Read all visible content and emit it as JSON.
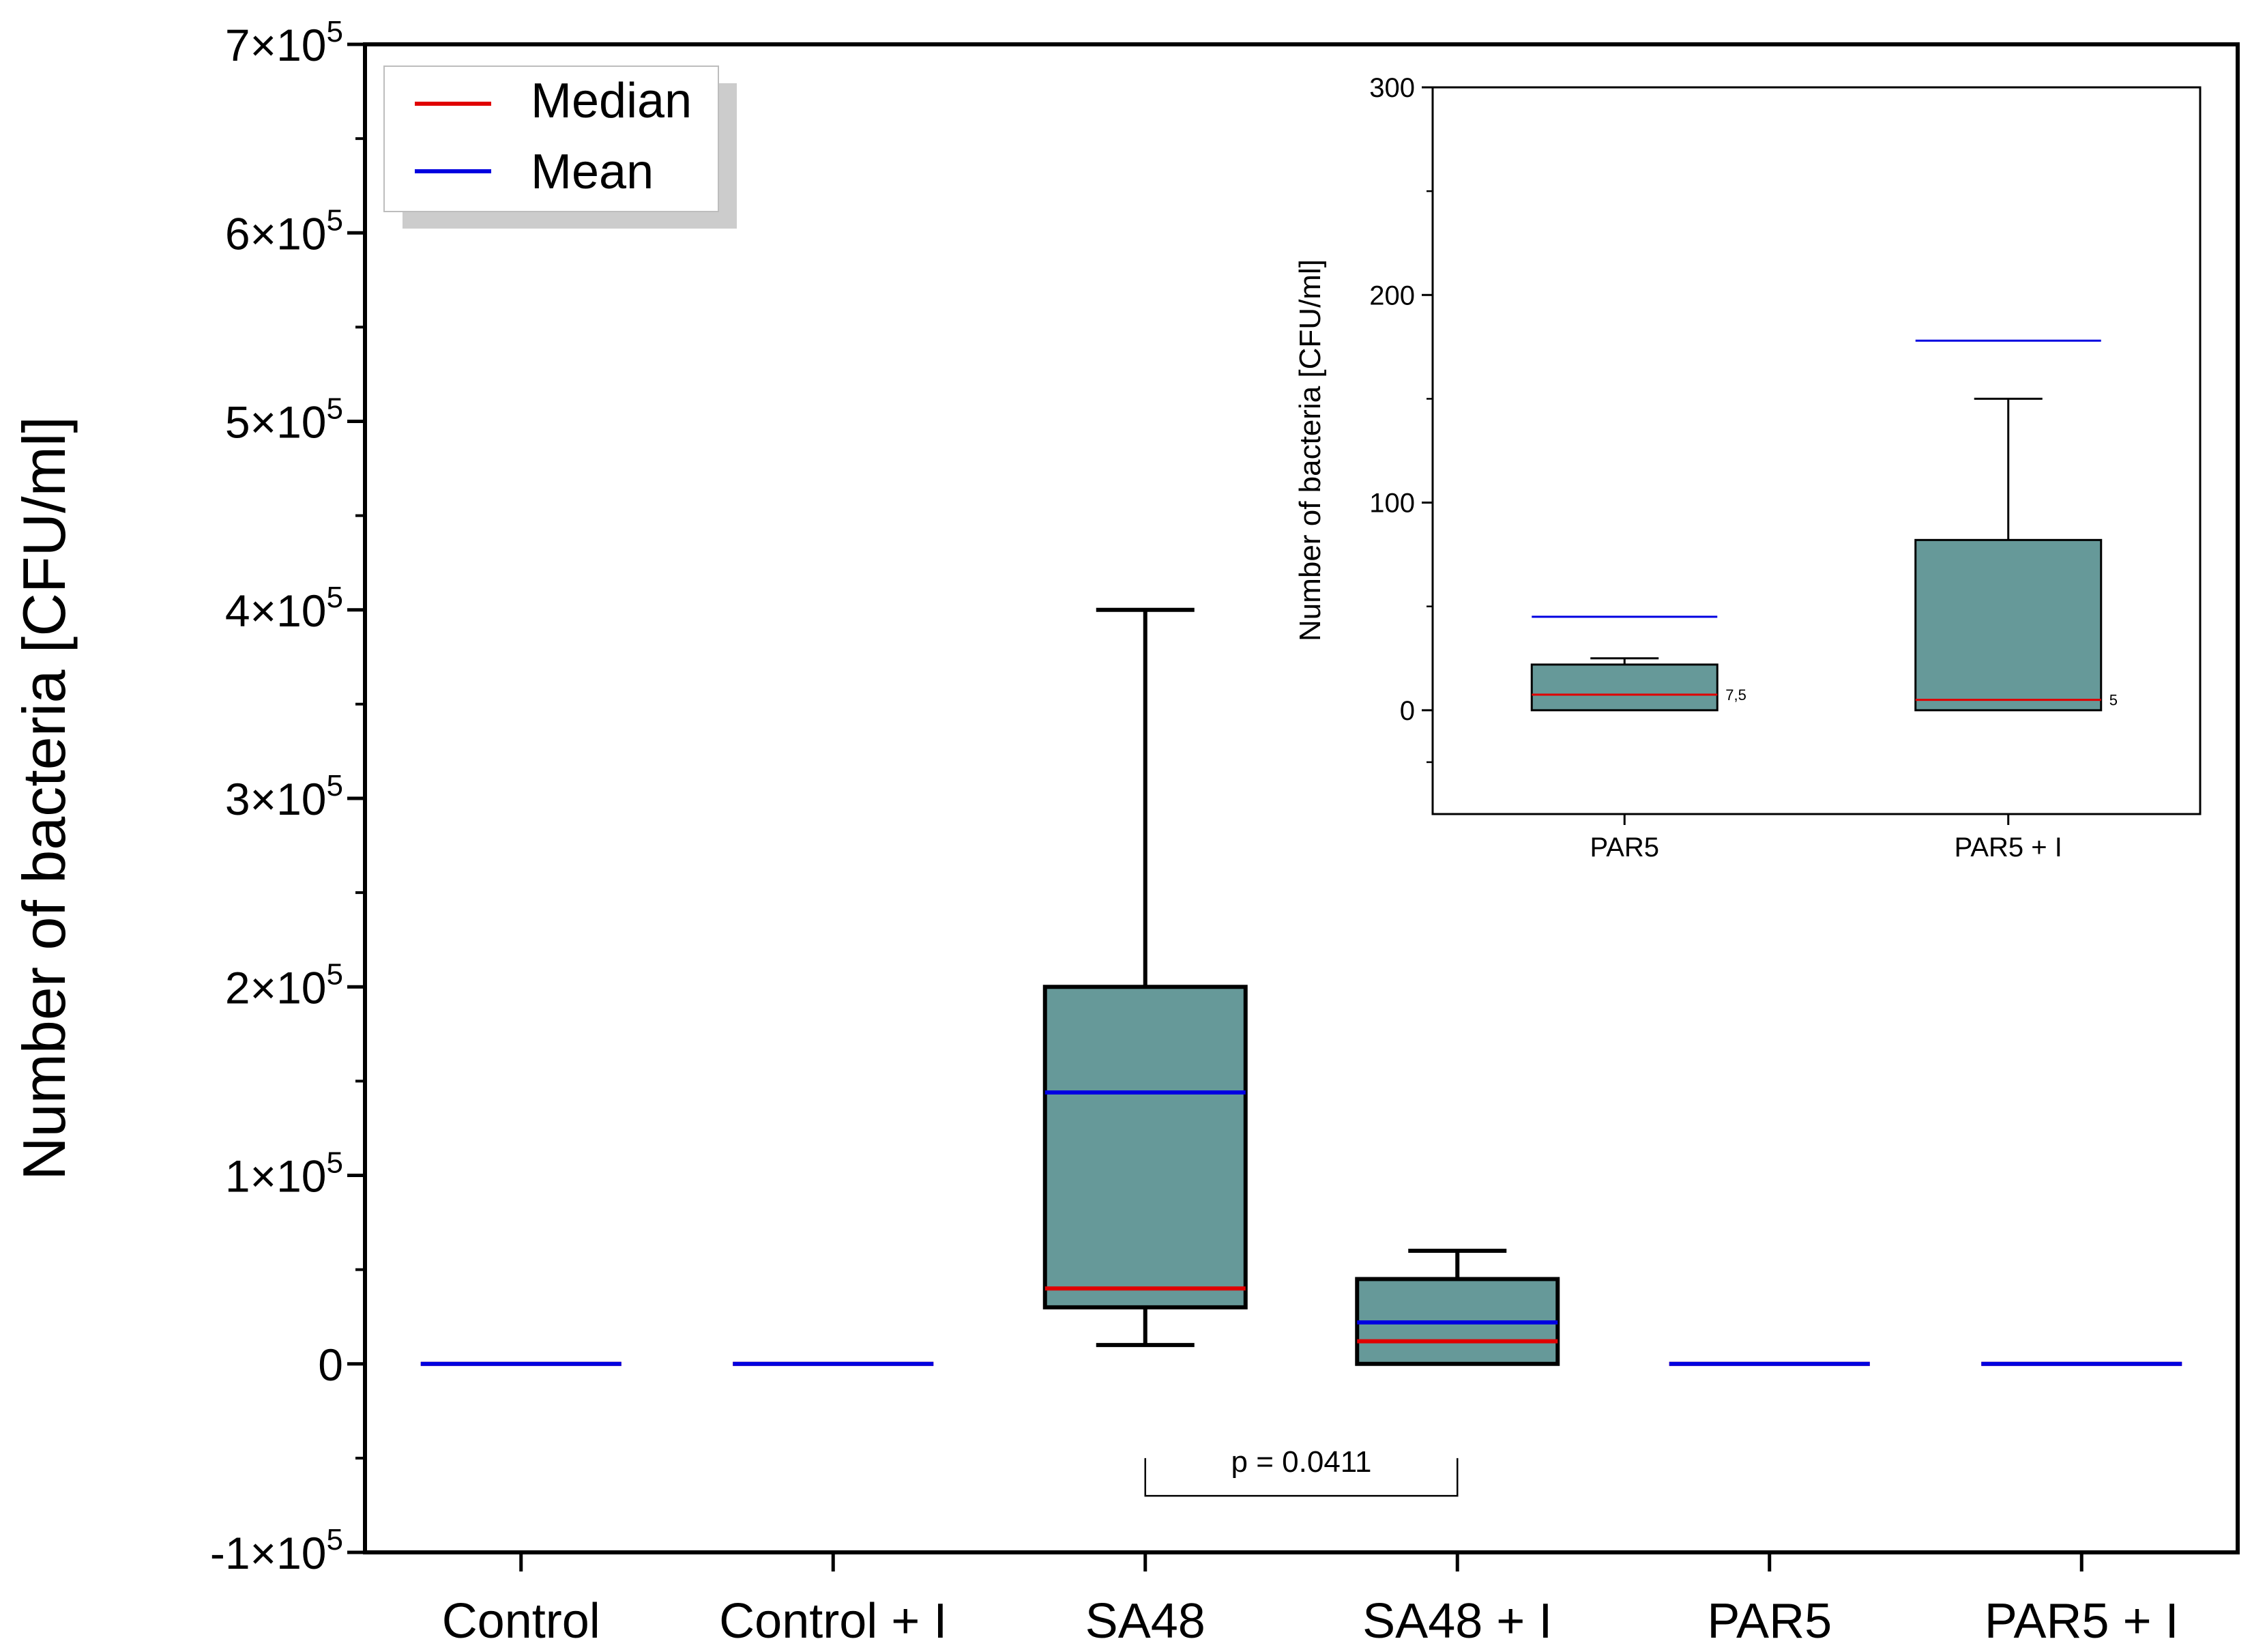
{
  "colors": {
    "box_fill": "#669999",
    "median": "#e00000",
    "mean": "#0000e0",
    "axis": "#000000",
    "legend_shadow": "#cccccc"
  },
  "chart_data": [
    {
      "id": "main",
      "type": "box",
      "ylabel": "Number of bacteria  [CFU/ml]",
      "ylim": [
        -100000,
        700000
      ],
      "yticks": [
        {
          "value": -100000,
          "mantissa": "-1",
          "times": "×10",
          "exp": "5"
        },
        {
          "value": 0,
          "mantissa": "0",
          "times": "",
          "exp": ""
        },
        {
          "value": 100000,
          "mantissa": "1",
          "times": "×10",
          "exp": "5"
        },
        {
          "value": 200000,
          "mantissa": "2",
          "times": "×10",
          "exp": "5"
        },
        {
          "value": 300000,
          "mantissa": "3",
          "times": "×10",
          "exp": "5"
        },
        {
          "value": 400000,
          "mantissa": "4",
          "times": "×10",
          "exp": "5"
        },
        {
          "value": 500000,
          "mantissa": "5",
          "times": "×10",
          "exp": "5"
        },
        {
          "value": 600000,
          "mantissa": "6",
          "times": "×10",
          "exp": "5"
        },
        {
          "value": 700000,
          "mantissa": "7",
          "times": "×10",
          "exp": "5"
        }
      ],
      "categories": [
        "Control",
        "Control + I",
        "SA48",
        "SA48 + I",
        "PAR5",
        "PAR5 + I"
      ],
      "boxes": [
        {
          "category": "Control",
          "min": 0,
          "q1": 0,
          "median": 0,
          "q3": 0,
          "max": 0,
          "mean": 0
        },
        {
          "category": "Control + I",
          "min": 0,
          "q1": 0,
          "median": 0,
          "q3": 0,
          "max": 0,
          "mean": 0
        },
        {
          "category": "SA48",
          "min": 10000,
          "q1": 30000,
          "median": 40000,
          "q3": 200000,
          "max": 400000,
          "mean": 144000
        },
        {
          "category": "SA48 + I",
          "min": 0,
          "q1": 0,
          "median": 12000,
          "q3": 45000,
          "max": 60000,
          "mean": 22000
        },
        {
          "category": "PAR5",
          "min": 0,
          "q1": 0,
          "median": 0,
          "q3": 0,
          "max": 0,
          "mean": 0
        },
        {
          "category": "PAR5 + I",
          "min": 0,
          "q1": 0,
          "median": 0,
          "q3": 0,
          "max": 0,
          "mean": 0
        }
      ],
      "legend": {
        "position": "top-left",
        "entries": [
          {
            "label": "Median",
            "color_key": "median"
          },
          {
            "label": "Mean",
            "color_key": "mean"
          }
        ]
      },
      "annotation": {
        "text": "p = 0.0411",
        "from": "SA48",
        "to": "SA48 + I",
        "y_top": -50000,
        "y_bottom": -70000
      }
    },
    {
      "id": "inset",
      "type": "box",
      "ylabel": "Number of bacteria  [CFU/ml]",
      "ylim": [
        -50,
        300
      ],
      "yticks": [
        0,
        100,
        200,
        300
      ],
      "categories": [
        "PAR5",
        "PAR5 + I"
      ],
      "boxes": [
        {
          "category": "PAR5",
          "min": 0,
          "q1": 0,
          "median": 7.5,
          "q3": 22,
          "max": 25,
          "mean": 45,
          "median_label": "7,5"
        },
        {
          "category": "PAR5 + I",
          "min": 0,
          "q1": 0,
          "median": 5,
          "q3": 82,
          "max": 150,
          "mean": 178,
          "median_label": "5"
        }
      ]
    }
  ]
}
